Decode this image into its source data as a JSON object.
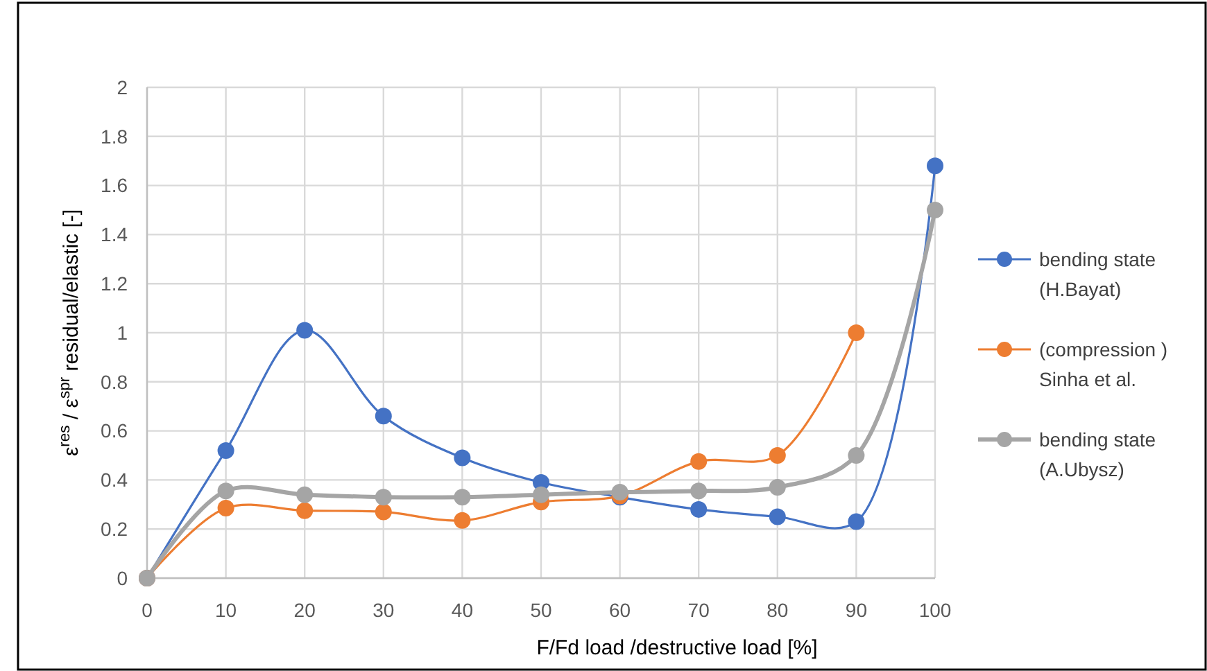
{
  "chart_data": {
    "type": "line",
    "xlabel": "F/Fd  load /destructive load [%]",
    "ylabel": "ε$^{res}$ / ε$^{spr}$ residual/elastic [-]",
    "x": [
      0,
      10,
      20,
      30,
      40,
      50,
      60,
      70,
      80,
      90,
      100
    ],
    "xlim": [
      0,
      100
    ],
    "xticks": [
      0,
      10,
      20,
      30,
      40,
      50,
      60,
      70,
      80,
      90,
      100
    ],
    "ylim": [
      0,
      2
    ],
    "yticks": [
      0,
      0.2,
      0.4,
      0.6,
      0.8,
      1,
      1.2,
      1.4,
      1.6,
      1.8,
      2
    ],
    "grid": true,
    "legend": "right",
    "marker": "circle",
    "line_style": "solid",
    "series": [
      {
        "name": "bending state (H.Bayat)",
        "color": "#4472c4",
        "values": [
          0,
          0.52,
          1.01,
          0.66,
          0.49,
          0.39,
          0.33,
          0.28,
          0.25,
          0.23,
          1.68
        ]
      },
      {
        "name": "(compression ) Sinha et al.",
        "color": "#ed7d31",
        "values": [
          0,
          0.285,
          0.275,
          0.27,
          0.235,
          0.31,
          0.335,
          0.475,
          0.5,
          1.0,
          null
        ]
      },
      {
        "name": "bending state (A.Ubysz)",
        "color": "#a5a5a5",
        "values": [
          0,
          0.355,
          0.34,
          0.33,
          0.33,
          0.34,
          0.35,
          0.355,
          0.37,
          0.5,
          1.5
        ]
      }
    ]
  }
}
